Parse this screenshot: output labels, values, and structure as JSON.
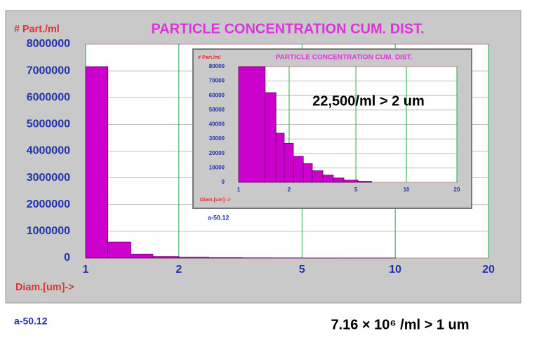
{
  "chart_data": [
    {
      "type": "histogram",
      "title": "PARTICLE CONCENTRATION CUM. DIST.",
      "y_label": "# Part./ml",
      "x_label": "Diam.[um]->",
      "bins": [
        1,
        1.18,
        1.4,
        1.65,
        2,
        2.5,
        3.2,
        4,
        5,
        7,
        10
      ],
      "values": [
        7160000,
        600000,
        150000,
        60000,
        30000,
        15000,
        8000,
        5000,
        2000,
        1000
      ],
      "color": "#cc00cc",
      "xscale": "log",
      "xlim": [
        1,
        20
      ],
      "xticks": [
        1,
        2,
        5,
        10,
        20
      ],
      "ylim": [
        0,
        8000000
      ],
      "yticks": [
        0,
        1000000,
        2000000,
        3000000,
        4000000,
        5000000,
        6000000,
        7000000,
        8000000
      ],
      "grid": true,
      "annotations": [
        "a-50.12"
      ]
    },
    {
      "type": "histogram",
      "title": "PARTICLE CONCENTRATION CUM. DIST.",
      "y_label": "# Part./ml",
      "x_label": "Diam.[um] ->",
      "bins": [
        1,
        1.44,
        1.67,
        1.87,
        2.12,
        2.43,
        2.75,
        3.18,
        3.67,
        4.24,
        5.15,
        6.2
      ],
      "values": [
        80000,
        62000,
        34000,
        27000,
        18000,
        13000,
        8000,
        5000,
        3000,
        1500,
        700
      ],
      "color": "#cc00cc",
      "xscale": "log",
      "xlim": [
        1,
        20
      ],
      "xticks": [
        1,
        2,
        5,
        10,
        20
      ],
      "ylim": [
        0,
        80000
      ],
      "yticks": [
        0,
        10000,
        20000,
        30000,
        40000,
        50000,
        60000,
        70000,
        80000
      ],
      "grid": true,
      "annotations": [
        "22,500/ml > 2 um"
      ]
    }
  ],
  "footer": {
    "note": "a-50.12",
    "summary": "7.16 × 10⁶ /ml > 1 um"
  }
}
